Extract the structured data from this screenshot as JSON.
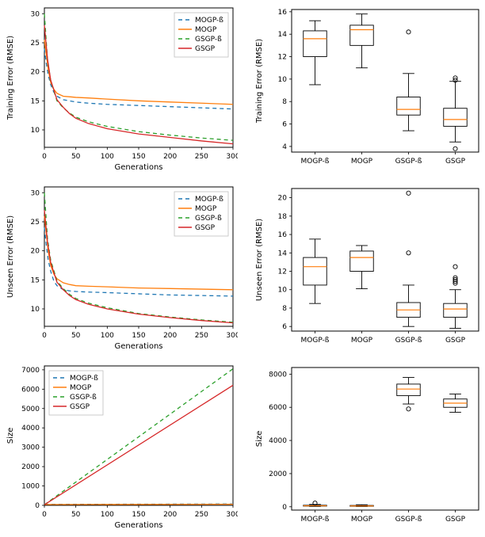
{
  "global": {
    "series_colors": {
      "MOGP-ß": "#1f77b4",
      "MOGP": "#ff7f0e",
      "GSGP-ß": "#2ca02c",
      "GSGP": "#d62728"
    },
    "series_dash": {
      "MOGP-ß": "5,4",
      "MOGP": "",
      "GSGP-ß": "5,4",
      "GSGP": ""
    },
    "box_edge_color": "#000000",
    "box_median_color": "#ff7f0e",
    "outlier_edge_color": "#000000",
    "background_color": "#ffffff",
    "axes_color": "#000000",
    "categories": [
      "MOGP-ß",
      "MOGP",
      "GSGP-ß",
      "GSGP"
    ],
    "line_width": 1.3,
    "box_line_width": 0.9,
    "tick_length": 3
  },
  "panels": [
    {
      "id": "trainLine",
      "type": "line",
      "xlabel": "Generations",
      "ylabel": "Training Error (RMSE)",
      "xlim": [
        0,
        300
      ],
      "ylim": [
        7,
        31
      ],
      "xticks": [
        0,
        50,
        100,
        150,
        200,
        250,
        300
      ],
      "yticks": [
        10,
        15,
        20,
        25,
        30
      ],
      "legend_pos": "top-right",
      "series": [
        {
          "name": "MOGP-ß",
          "x": [
            0,
            3,
            6,
            10,
            15,
            20,
            30,
            40,
            50,
            70,
            100,
            150,
            200,
            250,
            300
          ],
          "y": [
            24.0,
            21.5,
            19.5,
            17.8,
            16.5,
            15.8,
            15.2,
            15.0,
            14.8,
            14.6,
            14.4,
            14.2,
            14.0,
            13.8,
            13.6
          ]
        },
        {
          "name": "MOGP",
          "x": [
            0,
            3,
            6,
            10,
            15,
            20,
            30,
            40,
            50,
            70,
            100,
            150,
            200,
            250,
            300
          ],
          "y": [
            25.5,
            23.0,
            20.5,
            18.2,
            17.0,
            16.3,
            15.8,
            15.7,
            15.6,
            15.5,
            15.3,
            15.0,
            14.8,
            14.6,
            14.4
          ]
        },
        {
          "name": "GSGP-ß",
          "x": [
            0,
            5,
            10,
            20,
            30,
            40,
            50,
            70,
            100,
            150,
            200,
            250,
            300
          ],
          "y": [
            30.0,
            22.0,
            18.5,
            15.0,
            13.8,
            12.9,
            12.2,
            11.4,
            10.6,
            9.7,
            9.1,
            8.6,
            8.2
          ]
        },
        {
          "name": "GSGP",
          "x": [
            0,
            5,
            10,
            20,
            30,
            40,
            50,
            70,
            100,
            150,
            200,
            250,
            300
          ],
          "y": [
            28.0,
            22.2,
            18.6,
            15.2,
            13.9,
            12.8,
            12.0,
            11.1,
            10.2,
            9.3,
            8.7,
            8.1,
            7.6
          ]
        }
      ]
    },
    {
      "id": "trainBox",
      "type": "box",
      "ylabel": "Training Error (RMSE)",
      "ylim": [
        3.5,
        16.2
      ],
      "yticks": [
        4,
        6,
        8,
        10,
        12,
        14,
        16
      ],
      "boxes": [
        {
          "cat": "MOGP-ß",
          "q1": 12.0,
          "med": 13.6,
          "q3": 14.3,
          "wlo": 9.5,
          "whi": 15.2,
          "out": []
        },
        {
          "cat": "MOGP",
          "q1": 13.0,
          "med": 14.4,
          "q3": 14.8,
          "wlo": 11.0,
          "whi": 15.8,
          "out": []
        },
        {
          "cat": "GSGP-ß",
          "q1": 6.8,
          "med": 7.3,
          "q3": 8.4,
          "wlo": 5.4,
          "whi": 10.5,
          "out": [
            14.2
          ]
        },
        {
          "cat": "GSGP",
          "q1": 5.8,
          "med": 6.4,
          "q3": 7.4,
          "wlo": 4.4,
          "whi": 9.8,
          "out": [
            9.9,
            10.1,
            3.8
          ]
        }
      ]
    },
    {
      "id": "unseenLine",
      "type": "line",
      "xlabel": "Generations",
      "ylabel": "Unseen Error (RMSE)",
      "xlim": [
        0,
        300
      ],
      "ylim": [
        7,
        31
      ],
      "xticks": [
        0,
        50,
        100,
        150,
        200,
        250,
        300
      ],
      "yticks": [
        10,
        15,
        20,
        25,
        30
      ],
      "legend_pos": "top-right",
      "series": [
        {
          "name": "MOGP-ß",
          "x": [
            0,
            3,
            6,
            10,
            15,
            20,
            30,
            40,
            50,
            70,
            100,
            150,
            200,
            250,
            300
          ],
          "y": [
            24.0,
            21.0,
            18.5,
            16.5,
            14.8,
            14.0,
            13.3,
            13.1,
            13.0,
            12.9,
            12.8,
            12.6,
            12.4,
            12.3,
            12.2
          ]
        },
        {
          "name": "MOGP",
          "x": [
            0,
            3,
            6,
            10,
            15,
            20,
            30,
            40,
            50,
            70,
            100,
            150,
            200,
            250,
            300
          ],
          "y": [
            26.0,
            23.0,
            20.0,
            17.5,
            16.0,
            15.2,
            14.5,
            14.2,
            14.0,
            13.9,
            13.8,
            13.6,
            13.5,
            13.4,
            13.3
          ]
        },
        {
          "name": "GSGP-ß",
          "x": [
            0,
            5,
            10,
            20,
            30,
            40,
            50,
            70,
            100,
            150,
            200,
            250,
            300
          ],
          "y": [
            30.0,
            22.0,
            18.4,
            14.8,
            13.5,
            12.5,
            11.8,
            11.0,
            10.2,
            9.2,
            8.6,
            8.1,
            7.7
          ]
        },
        {
          "name": "GSGP",
          "x": [
            0,
            5,
            10,
            20,
            30,
            40,
            50,
            70,
            100,
            150,
            200,
            250,
            300
          ],
          "y": [
            27.0,
            21.5,
            18.0,
            14.6,
            13.3,
            12.3,
            11.6,
            10.8,
            10.0,
            9.1,
            8.5,
            8.0,
            7.6
          ]
        }
      ]
    },
    {
      "id": "unseenBox",
      "type": "box",
      "ylabel": "Unseen Error (RMSE)",
      "ylim": [
        5.5,
        21.0
      ],
      "yticks": [
        6,
        8,
        10,
        12,
        14,
        16,
        18,
        20
      ],
      "boxes": [
        {
          "cat": "MOGP-ß",
          "q1": 10.5,
          "med": 12.5,
          "q3": 13.5,
          "wlo": 8.5,
          "whi": 15.5,
          "out": []
        },
        {
          "cat": "MOGP",
          "q1": 12.0,
          "med": 13.5,
          "q3": 14.2,
          "wlo": 10.1,
          "whi": 14.8,
          "out": []
        },
        {
          "cat": "GSGP-ß",
          "q1": 7.0,
          "med": 7.8,
          "q3": 8.6,
          "wlo": 6.0,
          "whi": 10.5,
          "out": [
            14.0,
            20.5
          ]
        },
        {
          "cat": "GSGP",
          "q1": 7.0,
          "med": 7.9,
          "q3": 8.5,
          "wlo": 5.8,
          "whi": 10.0,
          "out": [
            10.7,
            10.9,
            11.1,
            11.3,
            12.5
          ]
        }
      ]
    },
    {
      "id": "sizeLine",
      "type": "line",
      "xlabel": "Generations",
      "ylabel": "Size",
      "xlim": [
        0,
        300
      ],
      "ylim": [
        0,
        7200
      ],
      "xticks": [
        0,
        50,
        100,
        150,
        200,
        250,
        300
      ],
      "yticks": [
        0,
        1000,
        2000,
        3000,
        4000,
        5000,
        6000,
        7000
      ],
      "legend_pos": "top-left",
      "series": [
        {
          "name": "MOGP-ß",
          "x": [
            0,
            300
          ],
          "y": [
            50,
            70
          ]
        },
        {
          "name": "MOGP",
          "x": [
            0,
            300
          ],
          "y": [
            40,
            55
          ]
        },
        {
          "name": "GSGP-ß",
          "x": [
            0,
            300
          ],
          "y": [
            30,
            7050
          ]
        },
        {
          "name": "GSGP",
          "x": [
            0,
            300
          ],
          "y": [
            30,
            6200
          ]
        }
      ]
    },
    {
      "id": "sizeBox",
      "type": "box",
      "ylabel": "Size",
      "ylim": [
        -200,
        8400
      ],
      "yticks": [
        0,
        2000,
        4000,
        6000,
        8000
      ],
      "boxes": [
        {
          "cat": "MOGP-ß",
          "q1": 40,
          "med": 60,
          "q3": 90,
          "wlo": 20,
          "whi": 140,
          "out": [
            220
          ]
        },
        {
          "cat": "MOGP",
          "q1": 30,
          "med": 50,
          "q3": 80,
          "wlo": 15,
          "whi": 120,
          "out": []
        },
        {
          "cat": "GSGP-ß",
          "q1": 6700,
          "med": 7100,
          "q3": 7400,
          "wlo": 6200,
          "whi": 7800,
          "out": [
            5900
          ]
        },
        {
          "cat": "GSGP",
          "q1": 6000,
          "med": 6250,
          "q3": 6500,
          "wlo": 5700,
          "whi": 6800,
          "out": []
        }
      ]
    }
  ]
}
